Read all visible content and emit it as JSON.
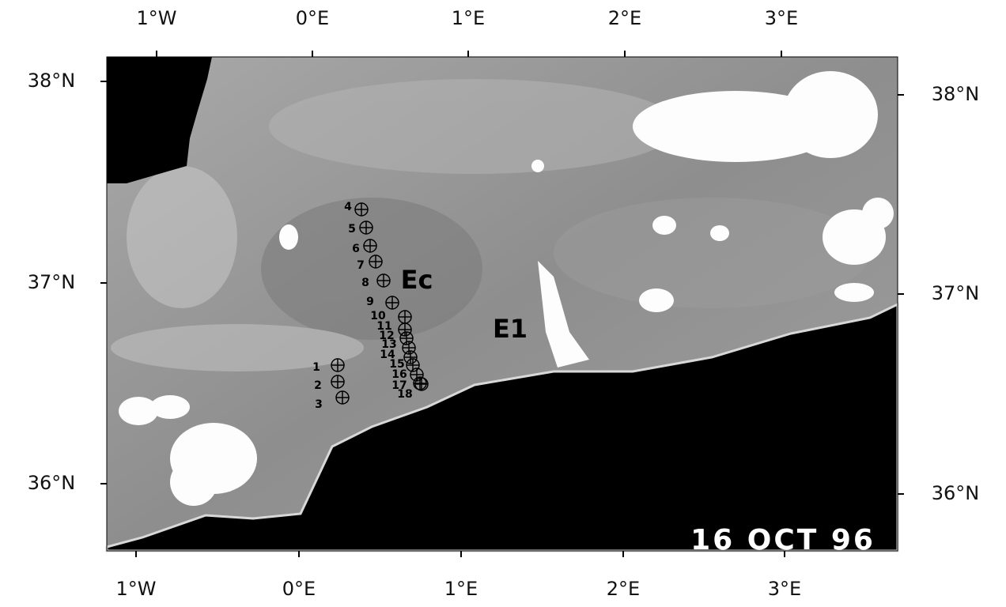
{
  "map": {
    "top_labels": [
      "1°W",
      "0°E",
      "1°E",
      "2°E",
      "3°E"
    ],
    "bottom_labels": [
      "1°W",
      "0°E",
      "1°E",
      "2°E",
      "3°E"
    ],
    "left_labels": [
      "38°N",
      "37°N",
      "36°N"
    ],
    "right_labels": [
      "38°N",
      "37°N",
      "36°N"
    ],
    "stations": [
      "1",
      "2",
      "3",
      "4",
      "5",
      "6",
      "7",
      "8",
      "9",
      "10",
      "11",
      "12",
      "13",
      "14",
      "15",
      "16",
      "17",
      "18"
    ],
    "annotations": [
      "Ec",
      "E1"
    ],
    "date": "16 OCT 96"
  }
}
